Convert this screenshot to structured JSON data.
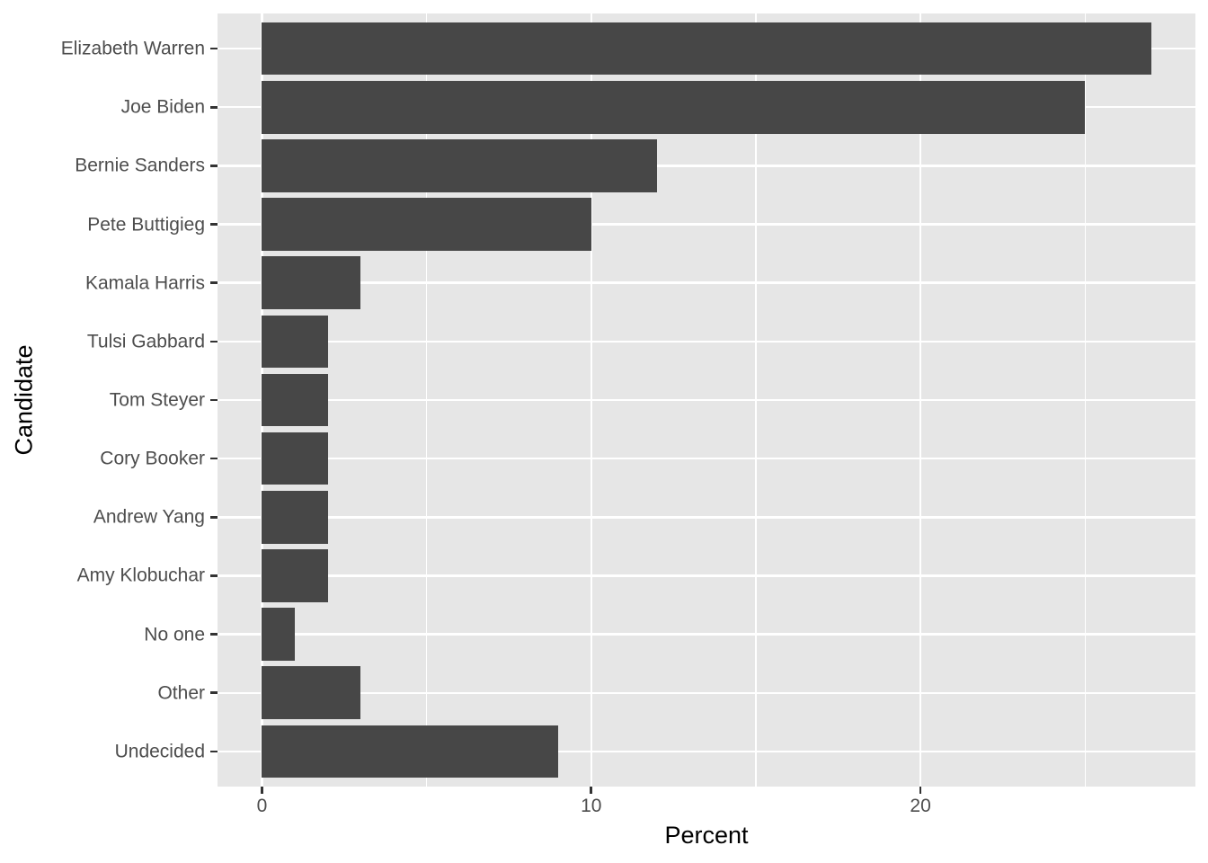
{
  "chart_data": {
    "type": "bar",
    "orientation": "horizontal",
    "title": "",
    "xlabel": "Percent",
    "ylabel": "Candidate",
    "categories": [
      "Elizabeth Warren",
      "Joe Biden",
      "Bernie Sanders",
      "Pete Buttigieg",
      "Kamala Harris",
      "Tulsi Gabbard",
      "Tom Steyer",
      "Cory Booker",
      "Andrew Yang",
      "Amy Klobuchar",
      "No one",
      "Other",
      "Undecided"
    ],
    "values": [
      27,
      25,
      12,
      10,
      3,
      2,
      2,
      2,
      2,
      2,
      1,
      3,
      9
    ],
    "x_tick_labels": [
      "0",
      "10",
      "20"
    ],
    "x_major_gridlines": [
      0,
      10,
      20
    ],
    "x_minor_gridlines": [
      5,
      15,
      25
    ],
    "xlim": [
      -1.35,
      28.35
    ],
    "bar_width_fraction": 0.9,
    "grid": true,
    "legend": false,
    "colors": {
      "bar": "#474747",
      "panel_background": "#E6E6E6",
      "gridline": "#FFFFFF",
      "axis_text": "#4D4D4D",
      "axis_title": "#000000",
      "tick_mark": "#333333",
      "figure_background": "#FFFFFF"
    }
  }
}
